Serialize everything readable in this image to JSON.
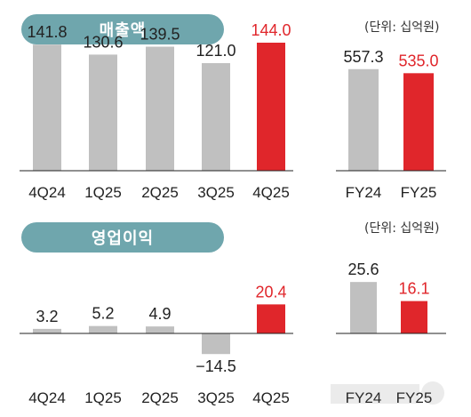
{
  "panels": {
    "revenue": {
      "title": "매출액",
      "unit": "(단위: 십억원)"
    },
    "op_income": {
      "title": "영업이익",
      "unit": "(단위: 십억원)"
    }
  },
  "colors": {
    "gray": "#c0c0c0",
    "red": "#e0262b",
    "pill": "#6fa6ad",
    "axis": "#222222"
  },
  "chart_data": [
    {
      "type": "bar",
      "title": "매출액",
      "categories": [
        "4Q24",
        "1Q25",
        "2Q25",
        "3Q25",
        "4Q25"
      ],
      "values": [
        141.8,
        130.6,
        139.5,
        121.0,
        144.0
      ],
      "labels": [
        "141.8",
        "130.6",
        "139.5",
        "121.0",
        "144.0"
      ],
      "highlight_index": 4
    },
    {
      "type": "bar",
      "title": "매출액",
      "categories": [
        "FY24",
        "FY25"
      ],
      "values": [
        557.3,
        535.0
      ],
      "labels": [
        "557.3",
        "535.0"
      ],
      "highlight_index": 1
    },
    {
      "type": "bar",
      "title": "영업이익",
      "categories": [
        "4Q24",
        "1Q25",
        "2Q25",
        "3Q25",
        "4Q25"
      ],
      "values": [
        3.2,
        5.2,
        4.9,
        -14.5,
        20.4
      ],
      "labels": [
        "3.2",
        "5.2",
        "4.9",
        "−14.5",
        "20.4"
      ],
      "highlight_index": 4
    },
    {
      "type": "bar",
      "title": "영업이익",
      "categories": [
        "FY24",
        "FY25"
      ],
      "values": [
        25.6,
        16.1
      ],
      "labels": [
        "25.6",
        "16.1"
      ],
      "highlight_index": 1
    }
  ]
}
